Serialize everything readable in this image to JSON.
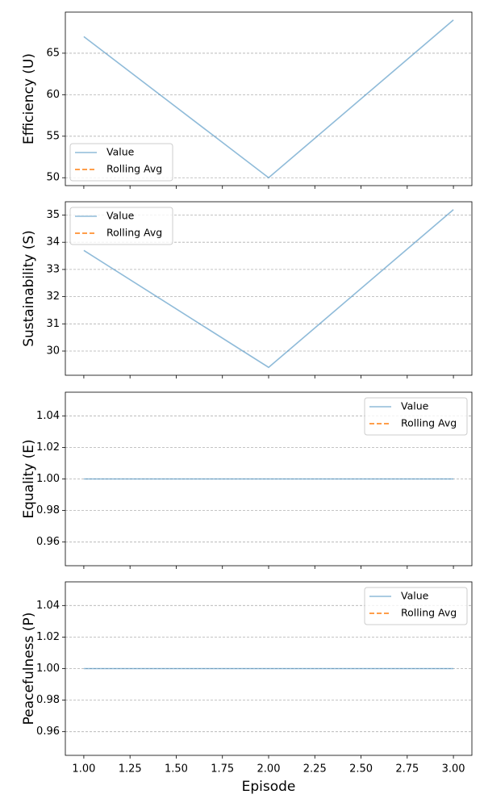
{
  "chart_data": [
    {
      "type": "line",
      "ylabel": "Efficiency (U)",
      "x": [
        1,
        2,
        3
      ],
      "series": [
        {
          "name": "Value",
          "color": "#1f77b4",
          "values": [
            67,
            50,
            69
          ]
        },
        {
          "name": "Rolling Avg",
          "color": "#ff7f0e",
          "values": [
            null,
            null,
            null
          ]
        }
      ],
      "ylim": [
        49.05,
        69.95
      ],
      "yticks": [
        50,
        55,
        60,
        65
      ],
      "grid": true,
      "legend": "lower left"
    },
    {
      "type": "line",
      "ylabel": "Sustainability (S)",
      "x": [
        1,
        2,
        3
      ],
      "series": [
        {
          "name": "Value",
          "color": "#1f77b4",
          "values": [
            33.7,
            29.4,
            35.2
          ]
        },
        {
          "name": "Rolling Avg",
          "color": "#ff7f0e",
          "values": [
            null,
            null,
            null
          ]
        }
      ],
      "ylim": [
        29.11,
        35.49
      ],
      "yticks": [
        30,
        31,
        32,
        33,
        34,
        35
      ],
      "grid": true,
      "legend": "upper left"
    },
    {
      "type": "line",
      "ylabel": "Equality (E)",
      "x": [
        1,
        2,
        3
      ],
      "series": [
        {
          "name": "Value",
          "color": "#1f77b4",
          "values": [
            1,
            1,
            1
          ]
        },
        {
          "name": "Rolling Avg",
          "color": "#ff7f0e",
          "values": [
            null,
            null,
            null
          ]
        }
      ],
      "ylim": [
        0.945,
        1.055
      ],
      "yticks": [
        0.96,
        0.98,
        {
          "value": 1,
          "label": "1.00"
        },
        1.02,
        1.04
      ],
      "grid": true,
      "legend": "upper right"
    },
    {
      "type": "line",
      "ylabel": "Peacefulness (P)",
      "xlabel": "Episode",
      "x": [
        1,
        2,
        3
      ],
      "series": [
        {
          "name": "Value",
          "color": "#1f77b4",
          "values": [
            1,
            1,
            1
          ]
        },
        {
          "name": "Rolling Avg",
          "color": "#ff7f0e",
          "values": [
            null,
            null,
            null
          ]
        }
      ],
      "ylim": [
        0.945,
        1.055
      ],
      "yticks": [
        0.96,
        0.98,
        {
          "value": 1,
          "label": "1.00"
        },
        1.02,
        1.04
      ],
      "grid": true,
      "legend": "upper right",
      "xlim": [
        0.9,
        3.1
      ],
      "xticks": [
        {
          "value": 1,
          "label": "1.00"
        },
        1.25,
        {
          "value": 1.5,
          "label": "1.50"
        },
        1.75,
        {
          "value": 2,
          "label": "2.00"
        },
        2.25,
        {
          "value": 2.5,
          "label": "2.50"
        },
        2.75,
        {
          "value": 3,
          "label": "3.00"
        }
      ]
    }
  ]
}
